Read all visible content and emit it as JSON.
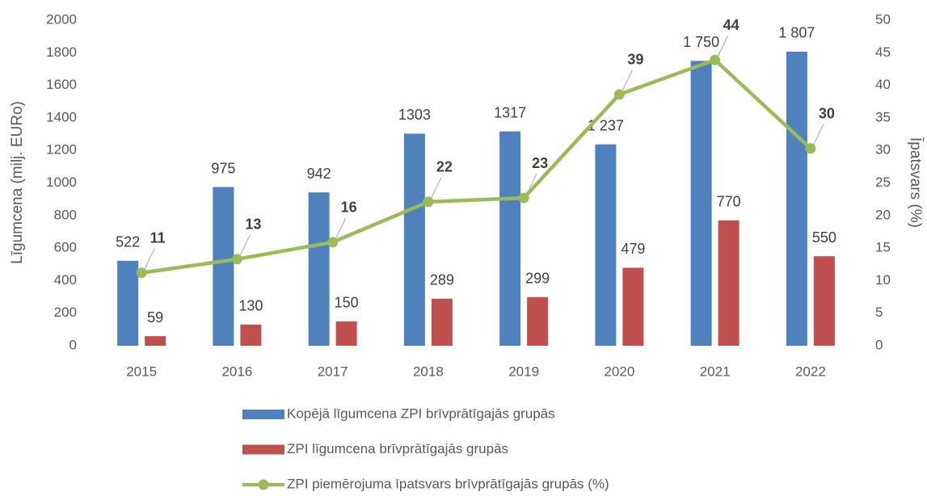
{
  "chart_data": {
    "type": "bar_line",
    "ylabel": "Līgumcena (milj. EURo)",
    "y2label": "Īpatsvars (%)",
    "categories": [
      "2015",
      "2016",
      "2017",
      "2018",
      "2019",
      "2020",
      "2021",
      "2022"
    ],
    "ylim": [
      0,
      2000
    ],
    "yticks": [
      0,
      200,
      400,
      600,
      800,
      1000,
      1200,
      1400,
      1600,
      1800,
      2000
    ],
    "y2lim": [
      0,
      50
    ],
    "y2ticks": [
      0,
      5,
      10,
      15,
      20,
      25,
      30,
      35,
      40,
      45,
      50
    ],
    "grid": false,
    "series": [
      {
        "name": "Kopējā līgumcena ZPI brīvprātīgajās grupās",
        "type": "bar",
        "color": "#4f81bd",
        "values": [
          522,
          975,
          942,
          1303,
          1317,
          1237,
          1750,
          1807
        ],
        "value_labels": [
          "522",
          "975",
          "942",
          "1303",
          "1317",
          "1 237",
          "1 750",
          "1 807"
        ]
      },
      {
        "name": "ZPI līgumcena brīvprātīgajās grupās",
        "type": "bar",
        "color": "#c0504d",
        "values": [
          59,
          130,
          150,
          289,
          299,
          479,
          770,
          550
        ]
      },
      {
        "name": "ZPI piemērojuma īpatsvars brīvprātīgajās grupās (%)",
        "type": "line",
        "axis": "y2",
        "color": "#9bbb59",
        "values": [
          11.2,
          13.3,
          15.9,
          22.1,
          22.7,
          38.6,
          43.9,
          30.3
        ],
        "value_labels": [
          "11",
          "13",
          "16",
          "22",
          "23",
          "39",
          "44",
          "30"
        ]
      }
    ]
  }
}
